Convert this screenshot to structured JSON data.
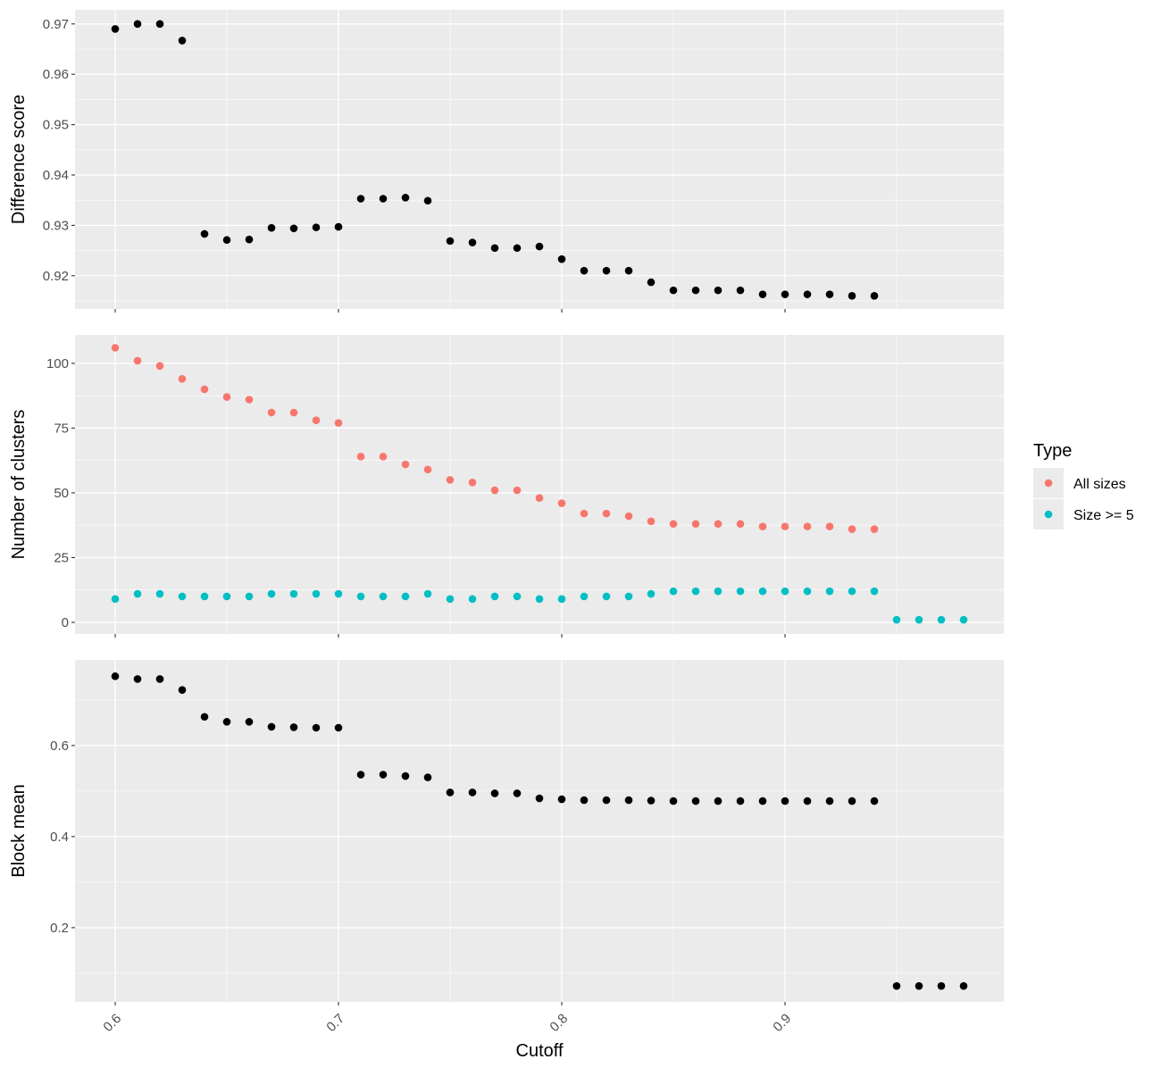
{
  "chart_data": {
    "type": "scatter",
    "xlabel": "Cutoff",
    "x_ticks": [
      "0.6",
      "0.7",
      "0.8",
      "0.9"
    ],
    "x_tick_values": [
      0.6,
      0.7,
      0.8,
      0.9
    ],
    "xlim": [
      0.582,
      0.998
    ],
    "grid": true,
    "legend": {
      "title": "Type",
      "placement": "right",
      "entries": [
        {
          "label": "All sizes",
          "color": "#F8766D"
        },
        {
          "label": "Size >= 5",
          "color": "#00BFC4"
        }
      ]
    },
    "colors": {
      "panel_background": "#EBEBEB",
      "grid": "#FFFFFF",
      "point_default": "#000000",
      "tick_text": "#4D4D4D"
    },
    "panels": [
      {
        "ylabel": "Difference score",
        "ylim": [
          0.9134,
          0.9728
        ],
        "y_ticks": [
          "0.92",
          "0.93",
          "0.94",
          "0.95",
          "0.96",
          "0.97"
        ],
        "y_tick_values": [
          0.92,
          0.93,
          0.94,
          0.95,
          0.96,
          0.97
        ],
        "series": [
          {
            "name": "",
            "color": "#000000",
            "x": [
              0.6,
              0.61,
              0.62,
              0.63,
              0.64,
              0.65,
              0.66,
              0.67,
              0.68,
              0.69,
              0.7,
              0.71,
              0.72,
              0.73,
              0.74,
              0.75,
              0.76,
              0.77,
              0.78,
              0.79,
              0.8,
              0.81,
              0.82,
              0.83,
              0.84,
              0.85,
              0.86,
              0.87,
              0.88,
              0.89,
              0.9,
              0.91,
              0.92,
              0.93,
              0.94
            ],
            "y": [
              0.969,
              0.97,
              0.97,
              0.9667,
              0.9283,
              0.9271,
              0.9272,
              0.9295,
              0.9294,
              0.9296,
              0.9297,
              0.9353,
              0.9353,
              0.9355,
              0.9349,
              0.9269,
              0.9266,
              0.9255,
              0.9255,
              0.9258,
              0.9233,
              0.921,
              0.921,
              0.921,
              0.9187,
              0.9171,
              0.9171,
              0.9171,
              0.9171,
              0.9163,
              0.9163,
              0.9163,
              0.9163,
              0.916,
              0.916
            ]
          }
        ]
      },
      {
        "ylabel": "Number of clusters",
        "ylim": [
          -4.5,
          111
        ],
        "y_ticks": [
          "0",
          "25",
          "50",
          "75",
          "100"
        ],
        "y_tick_values": [
          0,
          25,
          50,
          75,
          100
        ],
        "series": [
          {
            "name": "All sizes",
            "color": "#F8766D",
            "x": [
              0.6,
              0.61,
              0.62,
              0.63,
              0.64,
              0.65,
              0.66,
              0.67,
              0.68,
              0.69,
              0.7,
              0.71,
              0.72,
              0.73,
              0.74,
              0.75,
              0.76,
              0.77,
              0.78,
              0.79,
              0.8,
              0.81,
              0.82,
              0.83,
              0.84,
              0.85,
              0.86,
              0.87,
              0.88,
              0.89,
              0.9,
              0.91,
              0.92,
              0.93,
              0.94
            ],
            "y": [
              106,
              101,
              99,
              94,
              90,
              87,
              86,
              81,
              81,
              78,
              77,
              64,
              64,
              61,
              59,
              55,
              54,
              51,
              51,
              48,
              46,
              42,
              42,
              41,
              39,
              38,
              38,
              38,
              38,
              37,
              37,
              37,
              37,
              36,
              36
            ]
          },
          {
            "name": "Size >= 5",
            "color": "#00BFC4",
            "x": [
              0.6,
              0.61,
              0.62,
              0.63,
              0.64,
              0.65,
              0.66,
              0.67,
              0.68,
              0.69,
              0.7,
              0.71,
              0.72,
              0.73,
              0.74,
              0.75,
              0.76,
              0.77,
              0.78,
              0.79,
              0.8,
              0.81,
              0.82,
              0.83,
              0.84,
              0.85,
              0.86,
              0.87,
              0.88,
              0.89,
              0.9,
              0.91,
              0.92,
              0.93,
              0.94,
              0.95,
              0.96,
              0.97,
              0.98
            ],
            "y": [
              9,
              11,
              11,
              10,
              10,
              10,
              10,
              11,
              11,
              11,
              11,
              10,
              10,
              10,
              11,
              9,
              9,
              10,
              10,
              9,
              9,
              10,
              10,
              10,
              11,
              12,
              12,
              12,
              12,
              12,
              12,
              12,
              12,
              12,
              12,
              1,
              1,
              1,
              1
            ]
          }
        ]
      },
      {
        "ylabel": "Block mean",
        "ylim": [
          0.037,
          0.788
        ],
        "y_ticks": [
          "0.2",
          "0.4",
          "0.6"
        ],
        "y_tick_values": [
          0.2,
          0.4,
          0.6
        ],
        "series": [
          {
            "name": "",
            "color": "#000000",
            "x": [
              0.6,
              0.61,
              0.62,
              0.63,
              0.64,
              0.65,
              0.66,
              0.67,
              0.68,
              0.69,
              0.7,
              0.71,
              0.72,
              0.73,
              0.74,
              0.75,
              0.76,
              0.77,
              0.78,
              0.79,
              0.8,
              0.81,
              0.82,
              0.83,
              0.84,
              0.85,
              0.86,
              0.87,
              0.88,
              0.89,
              0.9,
              0.91,
              0.92,
              0.93,
              0.94,
              0.95,
              0.96,
              0.97,
              0.98
            ],
            "y": [
              0.752,
              0.746,
              0.746,
              0.722,
              0.663,
              0.652,
              0.652,
              0.641,
              0.64,
              0.639,
              0.639,
              0.536,
              0.536,
              0.533,
              0.53,
              0.497,
              0.497,
              0.495,
              0.495,
              0.484,
              0.482,
              0.48,
              0.48,
              0.48,
              0.479,
              0.478,
              0.478,
              0.478,
              0.478,
              0.478,
              0.478,
              0.478,
              0.478,
              0.478,
              0.478,
              0.072,
              0.072,
              0.072,
              0.072
            ]
          }
        ]
      }
    ]
  }
}
